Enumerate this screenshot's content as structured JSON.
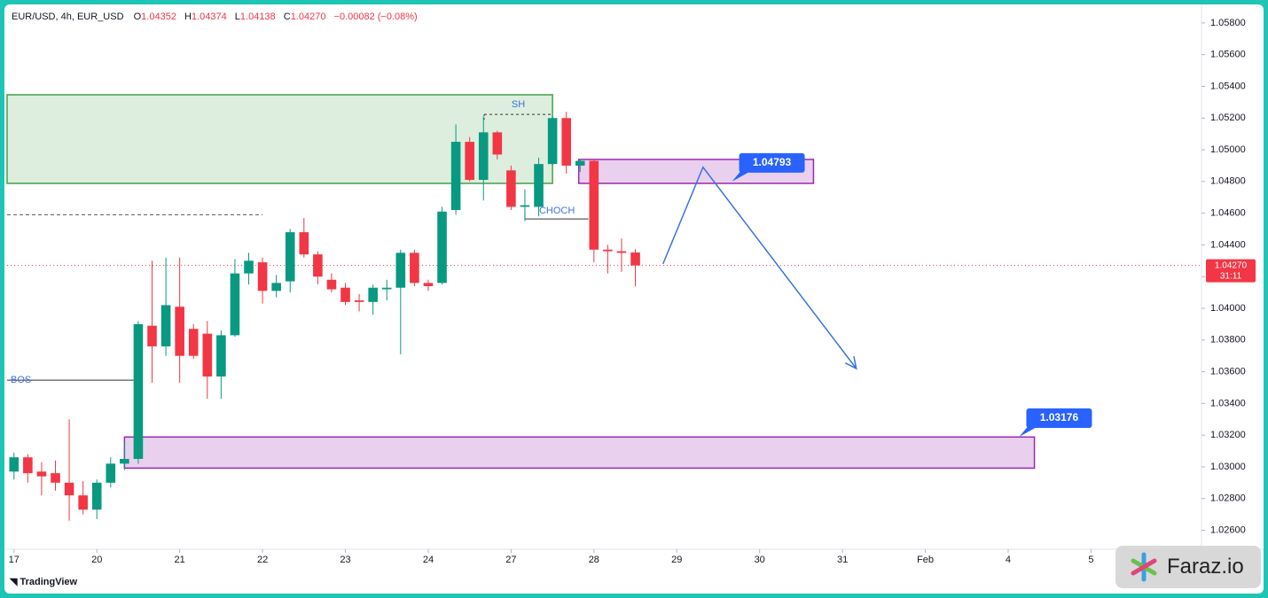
{
  "chart_data": {
    "type": "candlestick",
    "symbol": "EUR/USD, 4h, EUR_USD",
    "ohlc_header": [
      {
        "key": "O",
        "text": "1.04352"
      },
      {
        "key": "H",
        "text": "1.04374"
      },
      {
        "key": "L",
        "text": "1.04138"
      },
      {
        "key": "C",
        "text": "1.04270"
      }
    ],
    "change": "−0.00082 (−0.08%)",
    "up_color": "#089981",
    "down_color": "#f23645",
    "open": [
      1.0297,
      1.0306,
      1.0297,
      1.0296,
      1.029,
      1.0282,
      1.0273,
      1.029,
      1.0302,
      1.0305,
      1.0389,
      1.0376,
      1.0401,
      1.0387,
      1.0384,
      1.0357,
      1.0383,
      1.0422,
      1.0429,
      1.0411,
      1.0417,
      1.0448,
      1.0434,
      1.0418,
      1.0413,
      1.0405,
      1.0404,
      1.0412,
      1.0413,
      1.0435,
      1.0416,
      1.0416,
      1.0462,
      1.0505,
      1.0481,
      1.0511,
      1.0487,
      1.0464,
      1.0464,
      1.0491,
      1.052,
      1.049,
      1.0493,
      1.0437,
      1.0436,
      1.04352
    ],
    "high": [
      1.0309,
      1.0308,
      1.0303,
      1.0304,
      1.033,
      1.0291,
      1.0292,
      1.0306,
      1.0316,
      1.0392,
      1.043,
      1.0432,
      1.0432,
      1.039,
      1.0392,
      1.0386,
      1.0431,
      1.0435,
      1.0432,
      1.0421,
      1.045,
      1.0457,
      1.0436,
      1.0422,
      1.0416,
      1.0409,
      1.0415,
      1.0418,
      1.0437,
      1.0437,
      1.0418,
      1.0464,
      1.0516,
      1.0508,
      1.0521,
      1.0512,
      1.049,
      1.0475,
      1.0495,
      1.0521,
      1.0524,
      1.0494,
      1.0494,
      1.044,
      1.0444,
      1.04374
    ],
    "low": [
      1.0292,
      1.029,
      1.0282,
      1.0285,
      1.0266,
      1.027,
      1.0267,
      1.0287,
      1.0298,
      1.0302,
      1.0353,
      1.037,
      1.0353,
      1.0368,
      1.0343,
      1.0343,
      1.0382,
      1.0415,
      1.0403,
      1.0407,
      1.041,
      1.0432,
      1.0415,
      1.041,
      1.0402,
      1.0398,
      1.0396,
      1.0405,
      1.0371,
      1.0414,
      1.0411,
      1.0415,
      1.0459,
      1.048,
      1.0468,
      1.0494,
      1.0462,
      1.0455,
      1.0458,
      1.049,
      1.0485,
      1.0486,
      1.0429,
      1.0422,
      1.0423,
      1.04138
    ],
    "close": [
      1.0306,
      1.0296,
      1.0294,
      1.029,
      1.0282,
      1.0273,
      1.029,
      1.0302,
      1.0305,
      1.039,
      1.0376,
      1.0402,
      1.037,
      1.037,
      1.0357,
      1.0383,
      1.0422,
      1.043,
      1.0411,
      1.0416,
      1.0448,
      1.0434,
      1.042,
      1.0412,
      1.0404,
      1.0404,
      1.0413,
      1.0413,
      1.0435,
      1.0416,
      1.0414,
      1.0461,
      1.0505,
      1.0481,
      1.0511,
      1.0497,
      1.0464,
      1.0465,
      1.0491,
      1.052,
      1.049,
      1.0493,
      1.0437,
      1.0436,
      1.0435,
      1.0427
    ],
    "xlim": [
      -0.5,
      86
    ],
    "xticks": [
      {
        "value": 0,
        "label": "17"
      },
      {
        "value": 6,
        "label": "20"
      },
      {
        "value": 12,
        "label": "21"
      },
      {
        "value": 18,
        "label": "22"
      },
      {
        "value": 24,
        "label": "23"
      },
      {
        "value": 30,
        "label": "24"
      },
      {
        "value": 36,
        "label": "27"
      },
      {
        "value": 42,
        "label": "28"
      },
      {
        "value": 48,
        "label": "29"
      },
      {
        "value": 54,
        "label": "30"
      },
      {
        "value": 60,
        "label": "31"
      },
      {
        "value": 66,
        "label": "Feb"
      },
      {
        "value": 72,
        "label": "4"
      },
      {
        "value": 78,
        "label": "5"
      }
    ],
    "ylim": [
      1.0248,
      1.059
    ],
    "yticks": [
      {
        "value": 1.026,
        "label": "1.02600"
      },
      {
        "value": 1.028,
        "label": "1.02800"
      },
      {
        "value": 1.03,
        "label": "1.03000"
      },
      {
        "value": 1.032,
        "label": "1.03200"
      },
      {
        "value": 1.034,
        "label": "1.03400"
      },
      {
        "value": 1.036,
        "label": "1.03600"
      },
      {
        "value": 1.038,
        "label": "1.03800"
      },
      {
        "value": 1.04,
        "label": "1.04000"
      },
      {
        "value": 1.042,
        "label": "1.04200"
      },
      {
        "value": 1.044,
        "label": "1.04400"
      },
      {
        "value": 1.046,
        "label": "1.04600"
      },
      {
        "value": 1.048,
        "label": "1.04800"
      },
      {
        "value": 1.05,
        "label": "1.05000"
      },
      {
        "value": 1.052,
        "label": "1.05200"
      },
      {
        "value": 1.054,
        "label": "1.05400"
      },
      {
        "value": 1.056,
        "label": "1.05600"
      },
      {
        "value": 1.058,
        "label": "1.05800"
      }
    ],
    "current_price": {
      "value": 1.0427,
      "label": "1.04270"
    },
    "countdown": "31:11",
    "zones": [
      {
        "x0": -0.5,
        "x1": 39.0,
        "y0": 1.04788,
        "y1": 1.05347,
        "color": "#43a047"
      },
      {
        "x0": 40.9,
        "x1": 57.9,
        "y0": 1.04788,
        "y1": 1.04939,
        "color": "#9c27b0"
      },
      {
        "x0": 8.0,
        "x1": 73.9,
        "y0": 1.02992,
        "y1": 1.03188,
        "color": "#9c27b0"
      }
    ],
    "callouts": [
      {
        "text": "1.04793",
        "x": 52.0,
        "y": 1.048
      },
      {
        "text": "1.03176",
        "x": 72.8,
        "y": 1.0319
      }
    ],
    "levels": [
      {
        "text": "SH",
        "x0": 34.05,
        "x1": 39.0,
        "y": 1.05223,
        "dash": true
      },
      {
        "text": "CHOCH",
        "x0": 37.0,
        "x1": 41.6,
        "y": 1.04564,
        "dash": false
      },
      {
        "text": "BOS",
        "x0": -0.5,
        "x1": 9.0,
        "y": 1.03547,
        "dash": false
      }
    ],
    "dashed_level": {
      "x0": -0.5,
      "x1": 18.0,
      "y": 1.0459
    },
    "projection": {
      "x": [
        47,
        49.9,
        61
      ],
      "y": [
        1.0428,
        1.0489,
        1.0362
      ],
      "color": "#3b73e0"
    },
    "brand": "TradingView",
    "watermark": "Faraz.io"
  }
}
